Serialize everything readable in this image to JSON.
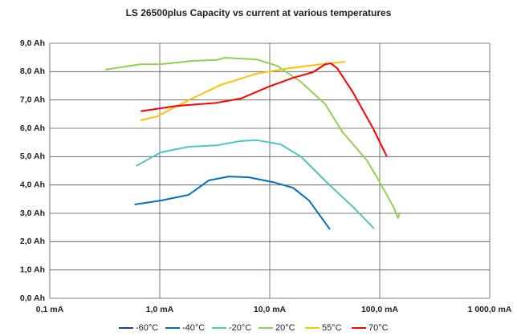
{
  "chart_data": {
    "type": "line",
    "title": "LS 26500plus Capacity vs current at various temperatures",
    "xscale": "log",
    "grid": true,
    "legend": "bottom",
    "xlim": [
      0.1,
      1000
    ],
    "xticks": [
      {
        "value": 0.1,
        "label": "0,1 mA"
      },
      {
        "value": 1,
        "label": "1,0 mA"
      },
      {
        "value": 10,
        "label": "10,0 mA"
      },
      {
        "value": 100,
        "label": "100,0 mA"
      },
      {
        "value": 1000,
        "label": "1 000,0 mA"
      }
    ],
    "ylim": [
      0,
      9
    ],
    "yticks": [
      {
        "value": 0,
        "label": "0,0 Ah"
      },
      {
        "value": 1,
        "label": "1,0 Ah"
      },
      {
        "value": 2,
        "label": "2,0 Ah"
      },
      {
        "value": 3,
        "label": "3,0 Ah"
      },
      {
        "value": 4,
        "label": "4,0 Ah"
      },
      {
        "value": 5,
        "label": "5,0 Ah"
      },
      {
        "value": 6,
        "label": "6,0 Ah"
      },
      {
        "value": 7,
        "label": "7,0 Ah"
      },
      {
        "value": 8,
        "label": "8,0 Ah"
      },
      {
        "value": 9,
        "label": "9,0 Ah"
      }
    ],
    "series": [
      {
        "name": "-60°C",
        "color": "#1f3f8f",
        "x": [],
        "values": []
      },
      {
        "name": "-40°C",
        "color": "#0070c0",
        "x": [
          0.59,
          1.02,
          1.83,
          2.79,
          4.24,
          6.46,
          10.7,
          16.3,
          22.8,
          35.3
        ],
        "values": [
          3.31,
          3.45,
          3.65,
          4.16,
          4.3,
          4.27,
          4.1,
          3.9,
          3.45,
          2.43
        ]
      },
      {
        "name": "-20°C",
        "color": "#4bc5c5",
        "x": [
          0.61,
          1.02,
          1.83,
          3.3,
          5.45,
          7.6,
          12.6,
          19.2,
          34.5,
          57,
          89
        ],
        "values": [
          4.67,
          5.15,
          5.35,
          5.4,
          5.55,
          5.58,
          5.43,
          5.0,
          4.02,
          3.23,
          2.46
        ]
      },
      {
        "name": "20°C",
        "color": "#92d050",
        "x": [
          0.32,
          0.67,
          1.02,
          1.99,
          3.3,
          3.9,
          7.6,
          11.6,
          19.2,
          32.0,
          46.0,
          76.4,
          98,
          133,
          147,
          152
        ],
        "values": [
          8.07,
          8.26,
          8.26,
          8.38,
          8.41,
          8.49,
          8.43,
          8.21,
          7.64,
          6.85,
          5.86,
          4.87,
          4.16,
          3.23,
          2.83,
          3.03
        ]
      },
      {
        "name": "55°C",
        "color": "#ffc000",
        "x": [
          0.67,
          0.94,
          1.83,
          3.58,
          7.6,
          14.9,
          29.3,
          48.5
        ],
        "values": [
          6.28,
          6.42,
          6.99,
          7.53,
          7.93,
          8.12,
          8.26,
          8.35
        ]
      },
      {
        "name": "70°C",
        "color": "#ff0000",
        "x": [
          0.67,
          1.42,
          3.3,
          5.45,
          9.8,
          16.3,
          24.8,
          32.0,
          35.9,
          41,
          57,
          87,
          116
        ],
        "values": [
          6.6,
          6.79,
          6.9,
          7.05,
          7.47,
          7.78,
          7.98,
          8.26,
          8.29,
          8.12,
          7.27,
          6.0,
          5.01
        ]
      }
    ]
  }
}
